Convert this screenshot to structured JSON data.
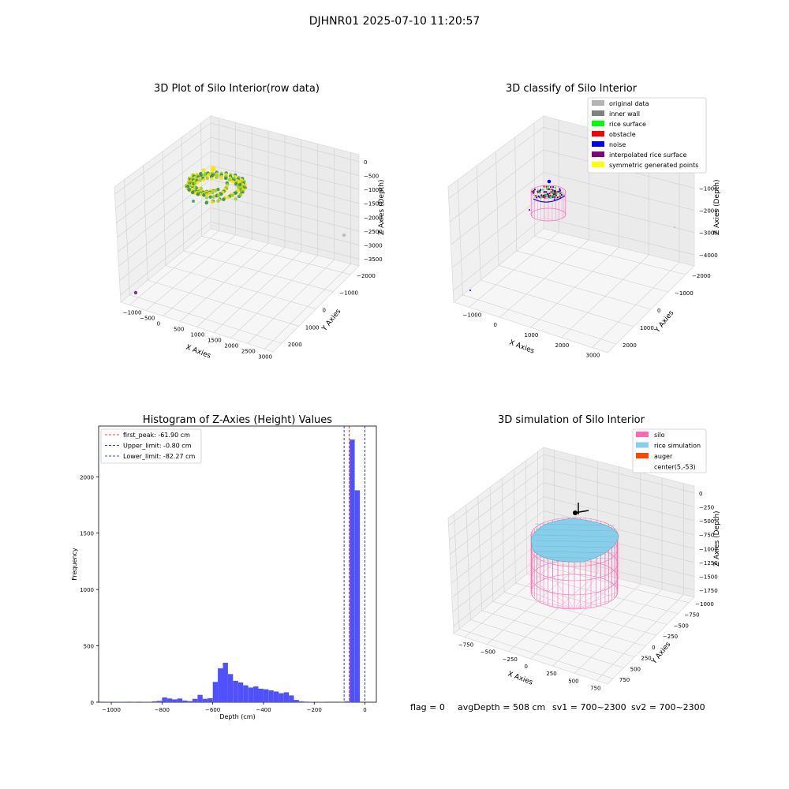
{
  "figure": {
    "suptitle": "DJHNR01 2025-07-10 11:20:57",
    "footer": {
      "flag": "flag = 0",
      "avg_depth": "avgDepth = 508 cm",
      "sv1": "sv1 = 700~2300",
      "sv2": "sv2 = 700~2300"
    }
  },
  "chart_data": [
    {
      "type": "scatter3d",
      "title": "3D Plot of Silo Interior(row data)",
      "xlabel": "X Axies",
      "ylabel": "Y Axies",
      "zlabel": "Z Axies (Depth)",
      "x_ticks": [
        "−1000",
        "−500",
        "0",
        "500",
        "1000",
        "1500",
        "2000",
        "2500",
        "3000"
      ],
      "y_ticks": [
        "−2000",
        "−1000",
        "0",
        "1000",
        "2000"
      ],
      "z_ticks": [
        "0",
        "−500",
        "−1000",
        "−1500",
        "−2000",
        "−2500",
        "−3000",
        "−3500"
      ],
      "xlim": [
        -1100,
        3100
      ],
      "ylim": [
        -2300,
        2300
      ],
      "zlim": [
        -3700,
        100
      ],
      "grid": true,
      "color_map": [
        "#2e8b57",
        "#9acd32",
        "#ffe400"
      ],
      "outliers": [
        {
          "x": -1050,
          "y": 2100,
          "z": -3600,
          "color": "#7b3294"
        },
        {
          "x": 2950,
          "y": -1900,
          "z": -2600,
          "color": "#bbbbbb"
        }
      ]
    },
    {
      "type": "scatter3d",
      "title": "3D classify of Silo Interior",
      "xlabel": "X Axies",
      "ylabel": "Y Axies",
      "zlabel": "Z Axies (Depth)",
      "x_ticks": [
        "−1000",
        "0",
        "1000",
        "2000",
        "3000"
      ],
      "y_ticks": [
        "−2000",
        "−1000",
        "0",
        "1000",
        "2000"
      ],
      "z_ticks": [
        "0",
        "−1000",
        "−2000",
        "−3000",
        "−4000"
      ],
      "xlim": [
        -1300,
        3300
      ],
      "ylim": [
        -2300,
        2300
      ],
      "zlim": [
        -4100,
        100
      ],
      "grid": true,
      "legend_position": "top-right",
      "legend": [
        {
          "label": "original data",
          "color": "#b3b3b3"
        },
        {
          "label": "inner wall",
          "color": "#808080"
        },
        {
          "label": "rice surface",
          "color": "#00ff00"
        },
        {
          "label": "obstacle",
          "color": "#ff0000"
        },
        {
          "label": "noise",
          "color": "#0000ff"
        },
        {
          "label": "interpolated rice surface",
          "color": "#800080"
        },
        {
          "label": "symmetric generated points",
          "color": "#ffff00"
        }
      ]
    },
    {
      "type": "bar",
      "title": "Histogram of Z-Axies (Height) Values",
      "xlabel": "Depth (cm)",
      "ylabel": "Frequency",
      "xlim": [
        -1050,
        45
      ],
      "ylim": [
        0,
        2450
      ],
      "x_ticks": [
        -1000,
        -800,
        -600,
        -400,
        -200,
        0
      ],
      "y_ticks": [
        0,
        500,
        1000,
        1500,
        2000
      ],
      "bin_width": 20,
      "bins": [
        {
          "x": -1010,
          "y": 3
        },
        {
          "x": -990,
          "y": 4
        },
        {
          "x": -970,
          "y": 3
        },
        {
          "x": -950,
          "y": 2
        },
        {
          "x": -910,
          "y": 3
        },
        {
          "x": -870,
          "y": 2
        },
        {
          "x": -850,
          "y": 3
        },
        {
          "x": -830,
          "y": 8
        },
        {
          "x": -810,
          "y": 12
        },
        {
          "x": -790,
          "y": 42
        },
        {
          "x": -770,
          "y": 33
        },
        {
          "x": -750,
          "y": 25
        },
        {
          "x": -730,
          "y": 33
        },
        {
          "x": -710,
          "y": 15
        },
        {
          "x": -690,
          "y": 10
        },
        {
          "x": -670,
          "y": 30
        },
        {
          "x": -650,
          "y": 65
        },
        {
          "x": -630,
          "y": 30
        },
        {
          "x": -610,
          "y": 35
        },
        {
          "x": -590,
          "y": 180
        },
        {
          "x": -570,
          "y": 300
        },
        {
          "x": -550,
          "y": 350
        },
        {
          "x": -530,
          "y": 250
        },
        {
          "x": -510,
          "y": 190
        },
        {
          "x": -490,
          "y": 175
        },
        {
          "x": -470,
          "y": 150
        },
        {
          "x": -450,
          "y": 130
        },
        {
          "x": -430,
          "y": 140
        },
        {
          "x": -410,
          "y": 120
        },
        {
          "x": -390,
          "y": 115
        },
        {
          "x": -370,
          "y": 105
        },
        {
          "x": -350,
          "y": 95
        },
        {
          "x": -330,
          "y": 80
        },
        {
          "x": -310,
          "y": 88
        },
        {
          "x": -290,
          "y": 60
        },
        {
          "x": -270,
          "y": 20
        },
        {
          "x": -250,
          "y": 8
        },
        {
          "x": -230,
          "y": 5
        },
        {
          "x": -210,
          "y": 3
        },
        {
          "x": -190,
          "y": 2
        },
        {
          "x": -170,
          "y": 3
        },
        {
          "x": -70,
          "y": 8
        },
        {
          "x": -50,
          "y": 2330
        },
        {
          "x": -30,
          "y": 1880
        }
      ],
      "bar_color": "#5050ff",
      "vlines": [
        {
          "x": -61.9,
          "color": "#ff0000"
        },
        {
          "x": -0.8,
          "color": "#0000aa"
        },
        {
          "x": -82.27,
          "color": "#0000ff"
        }
      ],
      "legend_position": "top-left",
      "legend": [
        {
          "label": "first_peak: -61.90 cm",
          "color": "#ff0000"
        },
        {
          "label": "Upper_limit: -0.80 cm",
          "color": "#0000aa"
        },
        {
          "label": "Lower_limit: -82.27 cm",
          "color": "#0000ff"
        }
      ]
    },
    {
      "type": "surface3d",
      "title": "3D simulation of Silo Interior",
      "xlabel": "X Axies",
      "ylabel": "Y Axies",
      "zlabel": "Z Axies (Depth)",
      "x_ticks": [
        "−750",
        "−500",
        "−250",
        "0",
        "250",
        "500",
        "750"
      ],
      "y_ticks": [
        "−1000",
        "−750",
        "−500",
        "−250",
        "0",
        "250",
        "500",
        "750"
      ],
      "z_ticks": [
        "0",
        "−250",
        "−500",
        "−750",
        "−1000",
        "−1250",
        "−1500",
        "−1750"
      ],
      "xlim": [
        -900,
        900
      ],
      "ylim": [
        -1050,
        900
      ],
      "zlim": [
        -1800,
        100
      ],
      "grid": true,
      "legend_position": "top-right",
      "legend": [
        {
          "label": "silo",
          "color": "#ff69b4"
        },
        {
          "label": "rice simulation",
          "color": "#87ceeb"
        },
        {
          "label": "auger",
          "color": "#ff4500"
        },
        {
          "label": "center(5,-53)",
          "color": "none"
        }
      ]
    }
  ]
}
